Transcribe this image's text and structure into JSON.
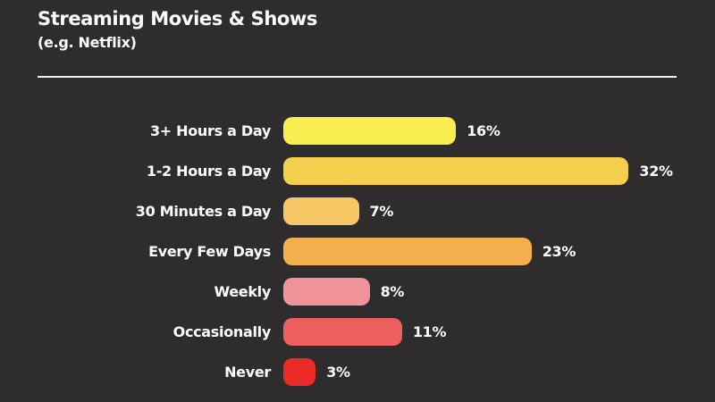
{
  "header": {
    "title": "Streaming Movies & Shows",
    "subtitle": "(e.g. Netflix)"
  },
  "theme": {
    "background_color": "#2f2c2d",
    "text_color": "#ffffff",
    "divider_color": "#f2f0ef"
  },
  "chart_data": {
    "type": "bar",
    "orientation": "horizontal",
    "title": "Streaming Movies & Shows",
    "subtitle": "(e.g. Netflix)",
    "categories": [
      "3+ Hours a Day",
      "1-2 Hours a Day",
      "30 Minutes a Day",
      "Every Few Days",
      "Weekly",
      "Occasionally",
      "Never"
    ],
    "values": [
      16,
      32,
      7,
      23,
      8,
      11,
      3
    ],
    "value_labels": [
      "16%",
      "32%",
      "7%",
      "23%",
      "8%",
      "11%",
      "3%"
    ],
    "bar_colors": [
      "#f9ed4f",
      "#f4ce4d",
      "#f7c765",
      "#f4ae4d",
      "#f0939a",
      "#ee5f5f",
      "#ec2a26"
    ],
    "xlim": [
      0,
      40
    ],
    "xlabel": "",
    "ylabel": "",
    "grid": false,
    "legend": false
  }
}
